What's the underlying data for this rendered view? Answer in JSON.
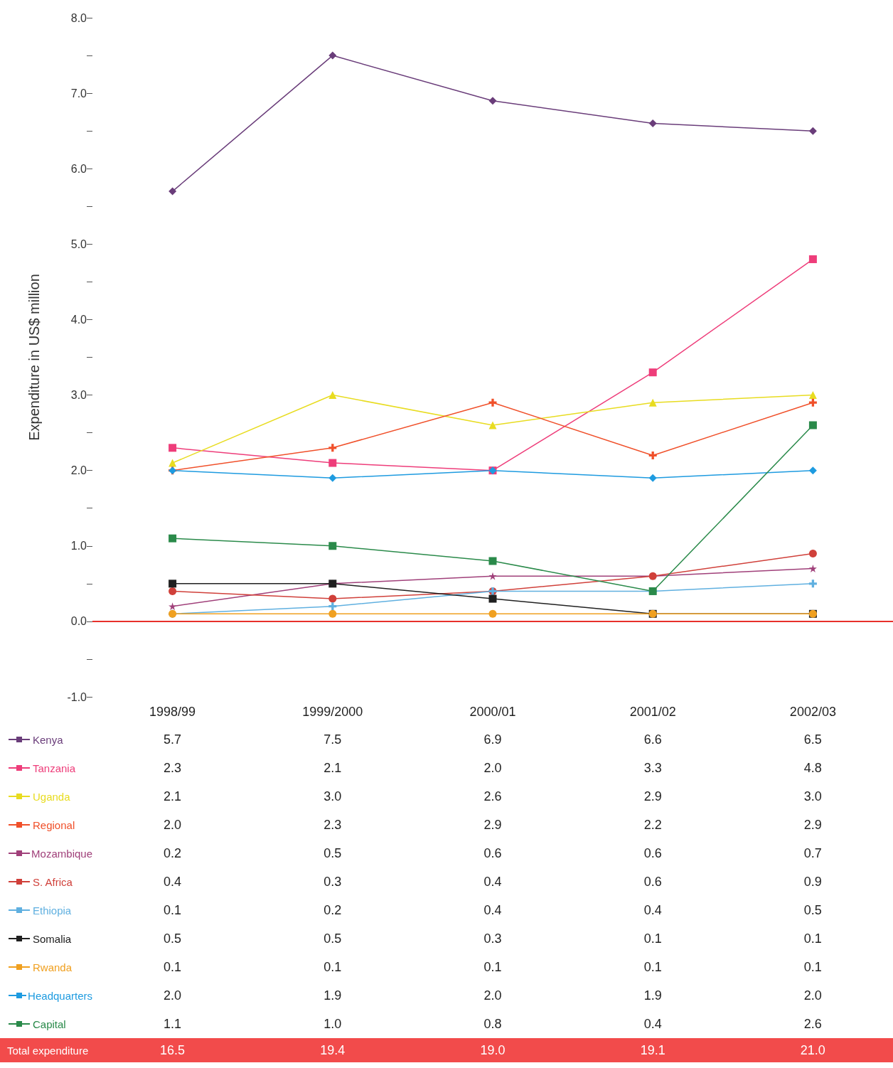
{
  "chart_data": {
    "type": "line",
    "ylabel": "Expenditure in US$ million",
    "categories": [
      "1998/99",
      "1999/2000",
      "2000/01",
      "2001/02",
      "2002/03"
    ],
    "ylim": [
      -1,
      8
    ],
    "yticks": [
      {
        "value": -1,
        "label": "-1.0"
      },
      {
        "value": -0.5,
        "label": null
      },
      {
        "value": 0,
        "label": "0.0"
      },
      {
        "value": 0.5,
        "label": null
      },
      {
        "value": 1,
        "label": "1.0"
      },
      {
        "value": 1.5,
        "label": null
      },
      {
        "value": 2,
        "label": "2.0"
      },
      {
        "value": 2.5,
        "label": null
      },
      {
        "value": 3,
        "label": "3.0"
      },
      {
        "value": 3.5,
        "label": null
      },
      {
        "value": 4,
        "label": "4.0"
      },
      {
        "value": 4.5,
        "label": null
      },
      {
        "value": 5,
        "label": "5.0"
      },
      {
        "value": 5.5,
        "label": null
      },
      {
        "value": 6,
        "label": "6.0"
      },
      {
        "value": 6.5,
        "label": null
      },
      {
        "value": 7,
        "label": "7.0"
      },
      {
        "value": 7.5,
        "label": null
      },
      {
        "value": 8,
        "label": "8.0"
      }
    ],
    "grid": false,
    "legend": "bottom left",
    "series": [
      {
        "name": "Kenya",
        "color": "#6a3d7a",
        "marker": "diamond",
        "values": [
          5.7,
          7.5,
          6.9,
          6.6,
          6.5
        ],
        "value_labels": [
          "5.7",
          "7.5",
          "6.9",
          "6.6",
          "6.5"
        ]
      },
      {
        "name": "Tanzania",
        "color": "#ee3d7a",
        "marker": "square",
        "values": [
          2.3,
          2.1,
          2.0,
          3.3,
          4.8
        ],
        "value_labels": [
          "2.3",
          "2.1",
          "2.0",
          "3.3",
          "4.8"
        ]
      },
      {
        "name": "Uganda",
        "color": "#e8dc20",
        "marker": "triangle",
        "values": [
          2.1,
          3.0,
          2.6,
          2.9,
          3.0
        ],
        "value_labels": [
          "2.1",
          "3.0",
          "2.6",
          "2.9",
          "3.0"
        ]
      },
      {
        "name": "Regional",
        "color": "#f0502a",
        "marker": "cross",
        "values": [
          2.0,
          2.3,
          2.9,
          2.2,
          2.9
        ],
        "value_labels": [
          "2.0",
          "2.3",
          "2.9",
          "2.2",
          "2.9"
        ]
      },
      {
        "name": "Mozambique",
        "color": "#a0407a",
        "marker": "star",
        "values": [
          0.2,
          0.5,
          0.6,
          0.6,
          0.7
        ],
        "value_labels": [
          "0.2",
          "0.5",
          "0.6",
          "0.6",
          "0.7"
        ]
      },
      {
        "name": "S. Africa",
        "color": "#d0403a",
        "marker": "circle",
        "values": [
          0.4,
          0.3,
          0.4,
          0.6,
          0.9
        ],
        "value_labels": [
          "0.4",
          "0.3",
          "0.4",
          "0.6",
          "0.9"
        ]
      },
      {
        "name": "Ethiopia",
        "color": "#60b0e0",
        "marker": "cross",
        "values": [
          0.1,
          0.2,
          0.4,
          0.4,
          0.5
        ],
        "value_labels": [
          "0.1",
          "0.2",
          "0.4",
          "0.4",
          "0.5"
        ]
      },
      {
        "name": "Somalia",
        "color": "#202020",
        "marker": "square",
        "values": [
          0.5,
          0.5,
          0.3,
          0.1,
          0.1
        ],
        "value_labels": [
          "0.5",
          "0.5",
          "0.3",
          "0.1",
          "0.1"
        ]
      },
      {
        "name": "Rwanda",
        "color": "#f0a020",
        "marker": "circle",
        "values": [
          0.1,
          0.1,
          0.1,
          0.1,
          0.1
        ],
        "value_labels": [
          "0.1",
          "0.1",
          "0.1",
          "0.1",
          "0.1"
        ]
      },
      {
        "name": "Headquarters",
        "color": "#1e9be0",
        "marker": "diamond",
        "values": [
          2.0,
          1.9,
          2.0,
          1.9,
          2.0
        ],
        "value_labels": [
          "2.0",
          "1.9",
          "2.0",
          "1.9",
          "2.0"
        ]
      },
      {
        "name": "Capital",
        "color": "#2a8a4a",
        "marker": "square",
        "values": [
          1.1,
          1.0,
          0.8,
          0.4,
          2.6
        ],
        "value_labels": [
          "1.1",
          "1.0",
          "0.8",
          "0.4",
          "2.6"
        ]
      }
    ],
    "ref_lines": [
      {
        "axis": "y",
        "value": 0,
        "label": null,
        "color": "#e8302a"
      }
    ],
    "totals": [
      "16.5",
      "19.4",
      "19.0",
      "19.1",
      "21.0"
    ],
    "annotations": [
      "Total expenditure"
    ]
  }
}
